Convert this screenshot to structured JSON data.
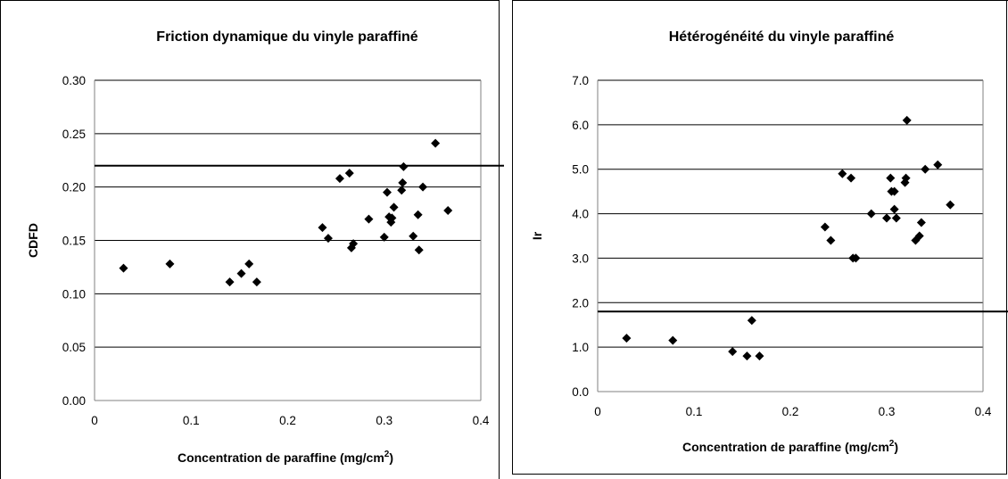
{
  "chart_data": [
    {
      "type": "scatter",
      "title": "Friction dynamique du vinyle paraffiné",
      "xlabel_main": "Concentration de paraffine (mg/cm",
      "xlabel_sup": "2",
      "xlabel_end": ")",
      "ylabel": "CDFD",
      "xlim": [
        0,
        0.4
      ],
      "ylim": [
        0,
        0.3
      ],
      "x_ticks": [
        "0",
        "0.1",
        "0.2",
        "0.3",
        "0.4"
      ],
      "y_ticks": [
        "0.00",
        "0.05",
        "0.10",
        "0.15",
        "0.20",
        "0.25",
        "0.30"
      ],
      "grid": "horizontal",
      "marker": "diamond",
      "color": "#000000",
      "threshold": 0.22,
      "points": [
        [
          0.03,
          0.124
        ],
        [
          0.078,
          0.128
        ],
        [
          0.14,
          0.111
        ],
        [
          0.152,
          0.119
        ],
        [
          0.16,
          0.128
        ],
        [
          0.168,
          0.111
        ],
        [
          0.236,
          0.162
        ],
        [
          0.242,
          0.152
        ],
        [
          0.254,
          0.208
        ],
        [
          0.264,
          0.213
        ],
        [
          0.266,
          0.143
        ],
        [
          0.268,
          0.147
        ],
        [
          0.284,
          0.17
        ],
        [
          0.3,
          0.153
        ],
        [
          0.303,
          0.195
        ],
        [
          0.305,
          0.172
        ],
        [
          0.307,
          0.167
        ],
        [
          0.308,
          0.171
        ],
        [
          0.31,
          0.181
        ],
        [
          0.318,
          0.197
        ],
        [
          0.319,
          0.204
        ],
        [
          0.32,
          0.219
        ],
        [
          0.33,
          0.154
        ],
        [
          0.335,
          0.174
        ],
        [
          0.336,
          0.141
        ],
        [
          0.34,
          0.2
        ],
        [
          0.353,
          0.241
        ],
        [
          0.366,
          0.178
        ]
      ]
    },
    {
      "type": "scatter",
      "title": "Hétérogénéité du vinyle paraffiné",
      "xlabel_main": "Concentration de paraffine (mg/cm",
      "xlabel_sup": "2",
      "xlabel_end": ")",
      "ylabel": "Ir",
      "xlim": [
        0,
        0.4
      ],
      "ylim": [
        0,
        7
      ],
      "x_ticks": [
        "0",
        "0.1",
        "0.2",
        "0.3",
        "0.4"
      ],
      "y_ticks": [
        "0.0",
        "1.0",
        "2.0",
        "3.0",
        "4.0",
        "5.0",
        "6.0",
        "7.0"
      ],
      "grid": "horizontal",
      "marker": "diamond",
      "color": "#000000",
      "threshold": 1.8,
      "points": [
        [
          0.03,
          1.2
        ],
        [
          0.078,
          1.15
        ],
        [
          0.14,
          0.9
        ],
        [
          0.155,
          0.8
        ],
        [
          0.16,
          1.6
        ],
        [
          0.168,
          0.8
        ],
        [
          0.236,
          3.7
        ],
        [
          0.242,
          3.4
        ],
        [
          0.254,
          4.9
        ],
        [
          0.263,
          4.8
        ],
        [
          0.265,
          3.0
        ],
        [
          0.268,
          3.0
        ],
        [
          0.284,
          4.0
        ],
        [
          0.3,
          3.9
        ],
        [
          0.304,
          4.8
        ],
        [
          0.305,
          4.5
        ],
        [
          0.308,
          4.5
        ],
        [
          0.308,
          4.1
        ],
        [
          0.31,
          3.9
        ],
        [
          0.319,
          4.7
        ],
        [
          0.32,
          4.8
        ],
        [
          0.321,
          6.1
        ],
        [
          0.33,
          3.4
        ],
        [
          0.334,
          3.5
        ],
        [
          0.336,
          3.8
        ],
        [
          0.34,
          5.0
        ],
        [
          0.353,
          5.1
        ],
        [
          0.366,
          4.2
        ]
      ]
    }
  ]
}
